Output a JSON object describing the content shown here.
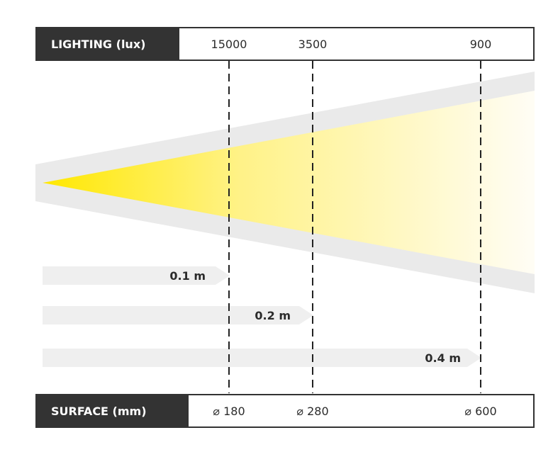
{
  "lighting": {
    "label": "LIGHTING (lux)",
    "values": [
      "15000",
      "3500",
      "900"
    ]
  },
  "surface": {
    "label": "SURFACE (mm)",
    "values": [
      "⌀ 180",
      "⌀ 280",
      "⌀ 600"
    ]
  },
  "distances": [
    "0.1 m",
    "0.2 m",
    "0.4 m"
  ],
  "colors": {
    "header_bg": "#333333",
    "beam_yellow": "#ffe800",
    "beam_fade": "#fffdf5",
    "halo_gray": "#eaeaea",
    "arrow_gray": "#efefef"
  }
}
